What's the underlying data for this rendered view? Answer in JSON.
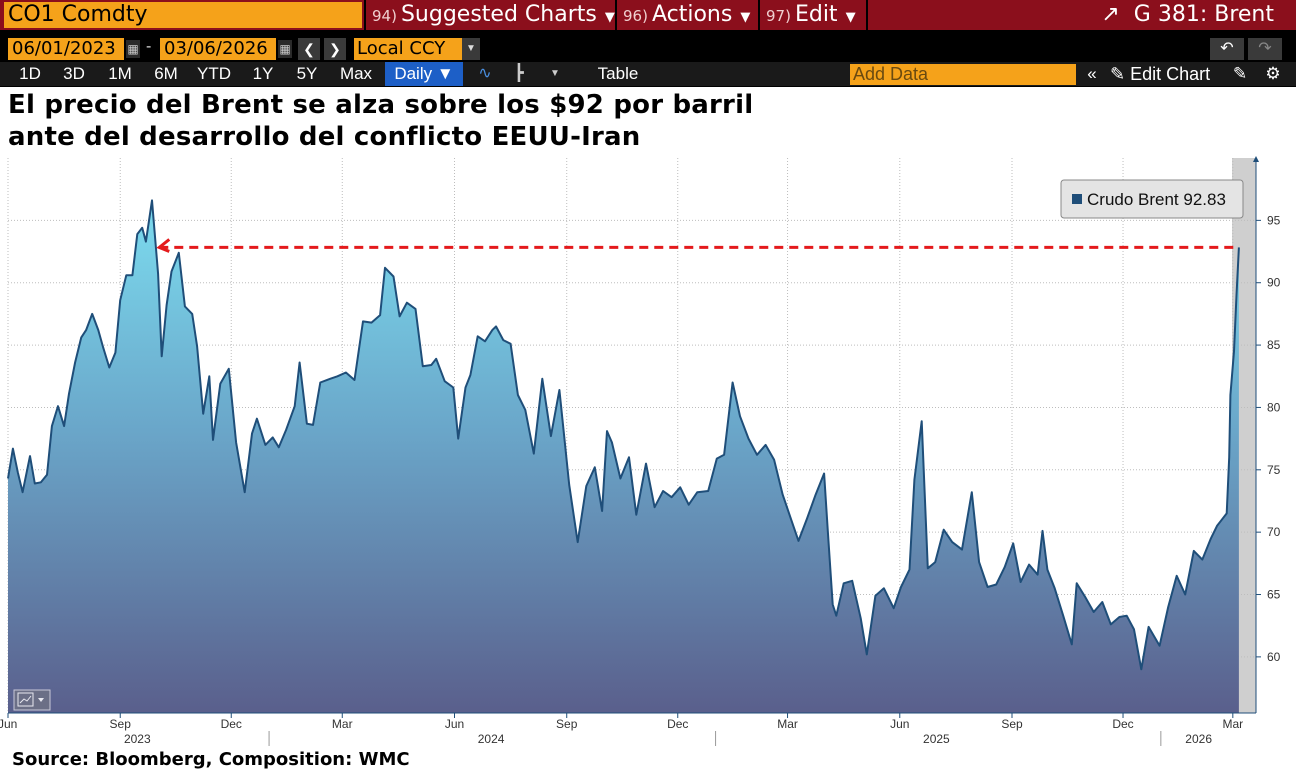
{
  "toolbar": {
    "ticker": "CO1 Comdty",
    "suggested_num": "94)",
    "suggested_label": "Suggested Charts",
    "actions_num": "96)",
    "actions_label": "Actions",
    "edit_num": "97)",
    "edit_label": "Edit",
    "function_label": "G 381: Brent",
    "start_date": "06/01/2023",
    "end_date": "03/06/2026",
    "currency": "Local CCY",
    "periods": [
      "1D",
      "3D",
      "1M",
      "6M",
      "YTD",
      "1Y",
      "5Y",
      "Max"
    ],
    "frequency": "Daily ▼",
    "table_label": "Table",
    "add_data_placeholder": "Add Data",
    "edit_chart_label": "Edit Chart"
  },
  "chart": {
    "title_line1": "El precio del Brent se alza sobre los $92 por barril",
    "title_line2": "ante del desarrollo del conflicto EEUU-Iran",
    "source": "Source: Bloomberg, Composition: WMC"
  },
  "chart_data": {
    "type": "area",
    "series": [
      {
        "name": "Crudo Brent",
        "last_value_label": "92.83",
        "color": "#1f4e79",
        "points": [
          [
            "2023-06-01",
            74.3
          ],
          [
            "2023-06-05",
            76.7
          ],
          [
            "2023-06-09",
            74.8
          ],
          [
            "2023-06-13",
            73.2
          ],
          [
            "2023-06-19",
            76.1
          ],
          [
            "2023-06-23",
            73.9
          ],
          [
            "2023-06-28",
            74.0
          ],
          [
            "2023-07-03",
            74.6
          ],
          [
            "2023-07-07",
            78.5
          ],
          [
            "2023-07-12",
            80.1
          ],
          [
            "2023-07-17",
            78.5
          ],
          [
            "2023-07-21",
            81.1
          ],
          [
            "2023-07-26",
            83.6
          ],
          [
            "2023-07-31",
            85.6
          ],
          [
            "2023-08-04",
            86.2
          ],
          [
            "2023-08-09",
            87.5
          ],
          [
            "2023-08-14",
            86.2
          ],
          [
            "2023-08-18",
            84.8
          ],
          [
            "2023-08-23",
            83.2
          ],
          [
            "2023-08-28",
            84.4
          ],
          [
            "2023-09-01",
            88.6
          ],
          [
            "2023-09-06",
            90.6
          ],
          [
            "2023-09-11",
            90.6
          ],
          [
            "2023-09-15",
            93.9
          ],
          [
            "2023-09-19",
            94.4
          ],
          [
            "2023-09-22",
            93.3
          ],
          [
            "2023-09-27",
            96.6
          ],
          [
            "2023-10-02",
            90.7
          ],
          [
            "2023-10-05",
            84.1
          ],
          [
            "2023-10-09",
            88.2
          ],
          [
            "2023-10-13",
            90.9
          ],
          [
            "2023-10-19",
            92.4
          ],
          [
            "2023-10-24",
            88.1
          ],
          [
            "2023-10-30",
            87.5
          ],
          [
            "2023-11-03",
            84.9
          ],
          [
            "2023-11-08",
            79.5
          ],
          [
            "2023-11-13",
            82.5
          ],
          [
            "2023-11-16",
            77.4
          ],
          [
            "2023-11-22",
            81.9
          ],
          [
            "2023-11-29",
            83.1
          ],
          [
            "2023-12-05",
            77.2
          ],
          [
            "2023-12-12",
            73.2
          ],
          [
            "2023-12-18",
            77.9
          ],
          [
            "2023-12-22",
            79.1
          ],
          [
            "2023-12-29",
            77.0
          ],
          [
            "2024-01-04",
            77.6
          ],
          [
            "2024-01-09",
            76.8
          ],
          [
            "2024-01-15",
            78.2
          ],
          [
            "2024-01-22",
            80.1
          ],
          [
            "2024-01-26",
            83.6
          ],
          [
            "2024-02-01",
            78.7
          ],
          [
            "2024-02-06",
            78.6
          ],
          [
            "2024-02-12",
            82.0
          ],
          [
            "2024-02-20",
            82.3
          ],
          [
            "2024-02-26",
            82.5
          ],
          [
            "2024-03-04",
            82.8
          ],
          [
            "2024-03-11",
            82.2
          ],
          [
            "2024-03-18",
            86.9
          ],
          [
            "2024-03-25",
            86.8
          ],
          [
            "2024-04-01",
            87.4
          ],
          [
            "2024-04-05",
            91.2
          ],
          [
            "2024-04-12",
            90.5
          ],
          [
            "2024-04-17",
            87.3
          ],
          [
            "2024-04-23",
            88.4
          ],
          [
            "2024-04-30",
            87.9
          ],
          [
            "2024-05-06",
            83.3
          ],
          [
            "2024-05-13",
            83.4
          ],
          [
            "2024-05-17",
            83.9
          ],
          [
            "2024-05-24",
            82.1
          ],
          [
            "2024-05-31",
            81.6
          ],
          [
            "2024-06-04",
            77.5
          ],
          [
            "2024-06-10",
            81.6
          ],
          [
            "2024-06-14",
            82.6
          ],
          [
            "2024-06-20",
            85.7
          ],
          [
            "2024-06-26",
            85.3
          ],
          [
            "2024-07-02",
            86.2
          ],
          [
            "2024-07-05",
            86.5
          ],
          [
            "2024-07-11",
            85.4
          ],
          [
            "2024-07-17",
            85.1
          ],
          [
            "2024-07-23",
            81.0
          ],
          [
            "2024-07-29",
            79.8
          ],
          [
            "2024-08-05",
            76.3
          ],
          [
            "2024-08-12",
            82.3
          ],
          [
            "2024-08-19",
            77.7
          ],
          [
            "2024-08-26",
            81.4
          ],
          [
            "2024-09-03",
            73.8
          ],
          [
            "2024-09-10",
            69.2
          ],
          [
            "2024-09-17",
            73.7
          ],
          [
            "2024-09-24",
            75.2
          ],
          [
            "2024-09-30",
            71.7
          ],
          [
            "2024-10-04",
            78.1
          ],
          [
            "2024-10-08",
            77.2
          ],
          [
            "2024-10-15",
            74.3
          ],
          [
            "2024-10-22",
            76.0
          ],
          [
            "2024-10-28",
            71.4
          ],
          [
            "2024-11-05",
            75.5
          ],
          [
            "2024-11-12",
            72.0
          ],
          [
            "2024-11-19",
            73.3
          ],
          [
            "2024-11-26",
            72.8
          ],
          [
            "2024-12-03",
            73.6
          ],
          [
            "2024-12-10",
            72.2
          ],
          [
            "2024-12-17",
            73.2
          ],
          [
            "2024-12-26",
            73.3
          ],
          [
            "2025-01-02",
            75.9
          ],
          [
            "2025-01-08",
            76.2
          ],
          [
            "2025-01-15",
            82.0
          ],
          [
            "2025-01-21",
            79.3
          ],
          [
            "2025-01-28",
            77.5
          ],
          [
            "2025-02-04",
            76.2
          ],
          [
            "2025-02-11",
            77.0
          ],
          [
            "2025-02-18",
            75.8
          ],
          [
            "2025-02-25",
            73.0
          ],
          [
            "2025-03-04",
            71.0
          ],
          [
            "2025-03-10",
            69.3
          ],
          [
            "2025-03-17",
            71.1
          ],
          [
            "2025-03-24",
            73.0
          ],
          [
            "2025-03-31",
            74.7
          ],
          [
            "2025-04-03",
            70.1
          ],
          [
            "2025-04-07",
            64.2
          ],
          [
            "2025-04-10",
            63.3
          ],
          [
            "2025-04-16",
            65.9
          ],
          [
            "2025-04-23",
            66.1
          ],
          [
            "2025-04-30",
            63.1
          ],
          [
            "2025-05-05",
            60.2
          ],
          [
            "2025-05-12",
            64.9
          ],
          [
            "2025-05-19",
            65.5
          ],
          [
            "2025-05-27",
            63.9
          ],
          [
            "2025-06-02",
            65.6
          ],
          [
            "2025-06-09",
            67.0
          ],
          [
            "2025-06-13",
            74.2
          ],
          [
            "2025-06-19",
            78.9
          ],
          [
            "2025-06-24",
            67.1
          ],
          [
            "2025-06-30",
            67.6
          ],
          [
            "2025-07-07",
            70.2
          ],
          [
            "2025-07-14",
            69.2
          ],
          [
            "2025-07-22",
            68.6
          ],
          [
            "2025-07-30",
            73.2
          ],
          [
            "2025-08-05",
            67.6
          ],
          [
            "2025-08-12",
            65.6
          ],
          [
            "2025-08-19",
            65.8
          ],
          [
            "2025-08-26",
            67.2
          ],
          [
            "2025-09-02",
            69.1
          ],
          [
            "2025-09-08",
            66.0
          ],
          [
            "2025-09-15",
            67.4
          ],
          [
            "2025-09-22",
            66.6
          ],
          [
            "2025-09-26",
            70.1
          ],
          [
            "2025-09-30",
            67.0
          ],
          [
            "2025-10-06",
            65.5
          ],
          [
            "2025-10-13",
            63.3
          ],
          [
            "2025-10-20",
            61.0
          ],
          [
            "2025-10-24",
            65.9
          ],
          [
            "2025-10-31",
            64.8
          ],
          [
            "2025-11-07",
            63.6
          ],
          [
            "2025-11-14",
            64.4
          ],
          [
            "2025-11-21",
            62.6
          ],
          [
            "2025-11-28",
            63.2
          ],
          [
            "2025-12-04",
            63.3
          ],
          [
            "2025-12-10",
            62.2
          ],
          [
            "2025-12-16",
            59.0
          ],
          [
            "2025-12-22",
            62.4
          ],
          [
            "2025-12-31",
            60.9
          ],
          [
            "2026-01-07",
            64.0
          ],
          [
            "2026-01-14",
            66.5
          ],
          [
            "2026-01-21",
            65.0
          ],
          [
            "2026-01-28",
            68.5
          ],
          [
            "2026-02-04",
            67.8
          ],
          [
            "2026-02-11",
            69.5
          ],
          [
            "2026-02-16",
            70.5
          ],
          [
            "2026-02-20",
            71.0
          ],
          [
            "2026-02-24",
            71.5
          ],
          [
            "2026-02-26",
            76.0
          ],
          [
            "2026-02-27",
            81.0
          ],
          [
            "2026-03-02",
            84.5
          ],
          [
            "2026-03-04",
            89.0
          ],
          [
            "2026-03-06",
            92.83
          ]
        ]
      }
    ],
    "reference_line": {
      "value": 92.83,
      "from": "2023-10-03",
      "to": "2026-03-06",
      "color": "#e41a1c",
      "style": "dashed"
    },
    "xlim": [
      "2023-06-01",
      "2026-03-20"
    ],
    "ylim": [
      55.5,
      100
    ],
    "y_ticks": [
      60,
      65,
      70,
      75,
      80,
      85,
      90,
      95
    ],
    "x_ticks": [
      "Jun",
      "Sep",
      "Dec",
      "Mar",
      "Jun",
      "Sep",
      "Dec",
      "Mar",
      "Jun",
      "Sep",
      "Dec",
      "Mar"
    ],
    "year_labels": [
      "2023",
      "2024",
      "2025",
      "2026"
    ],
    "legend_position": "top-right",
    "grid": true
  }
}
